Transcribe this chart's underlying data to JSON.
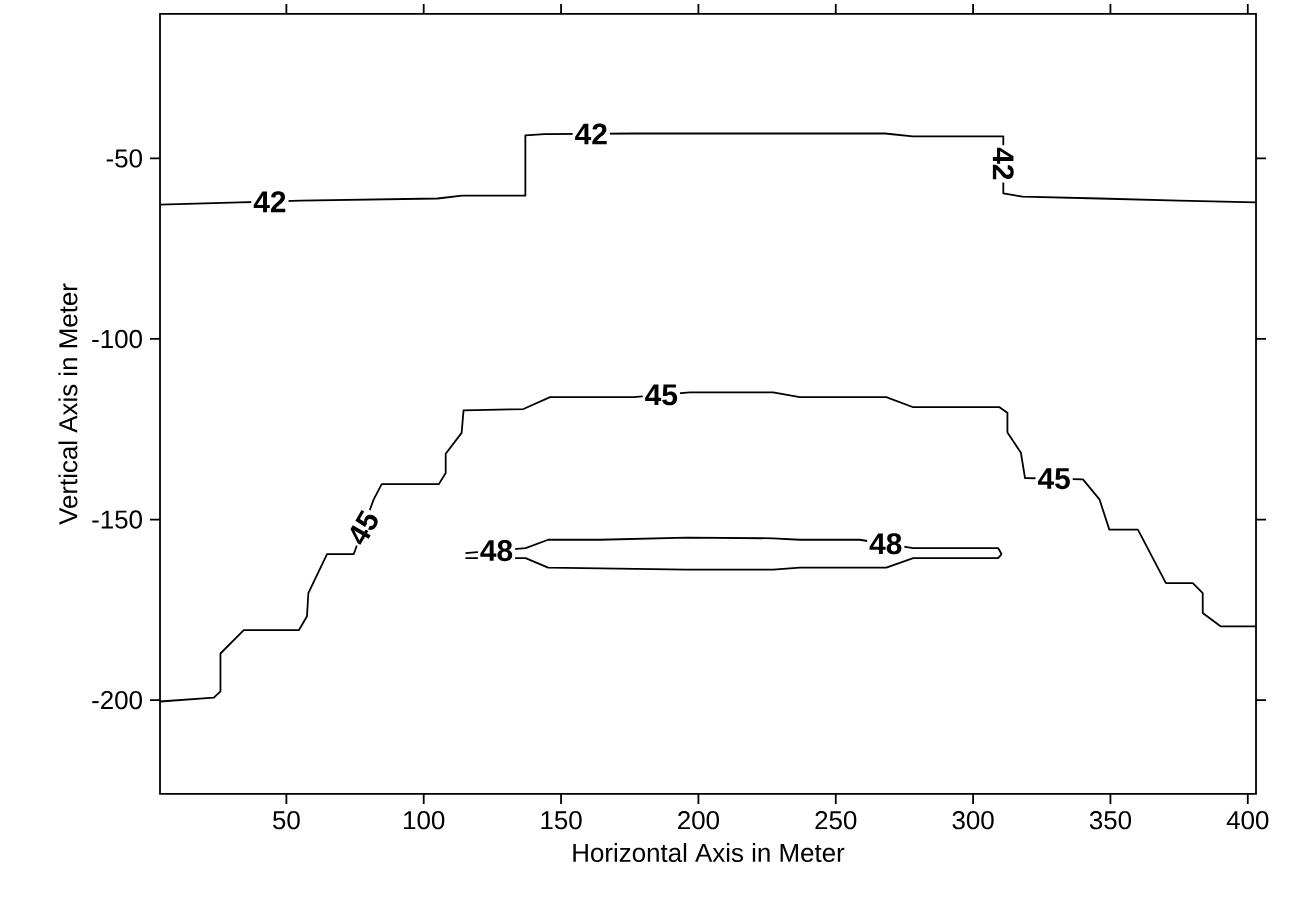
{
  "chart_data": {
    "type": "line",
    "xlabel": "Horizontal Axis in Meter",
    "ylabel": "Vertical Axis in Meter",
    "xlim": [
      4,
      403
    ],
    "ylim": [
      -226,
      -10
    ],
    "xticks": [
      50,
      100,
      150,
      200,
      250,
      300,
      350,
      400
    ],
    "yticks": [
      -200,
      -150,
      -100,
      -50
    ],
    "grid": false,
    "legend": false,
    "marker": "none",
    "line_style": "solid",
    "series": [
      {
        "color": "#000000",
        "x": [
          4,
          33,
          55,
          105,
          114,
          137,
          137,
          144,
          177,
          268,
          278,
          311,
          311,
          318,
          346,
          375,
          403
        ],
        "values": [
          -62.8,
          -62.2,
          -61.7,
          -61.1,
          -60.3,
          -60.3,
          -43.6,
          -43.3,
          -43.1,
          -43.1,
          -43.9,
          -43.9,
          -59.7,
          -60.6,
          -61.1,
          -61.7,
          -62.2
        ]
      },
      {
        "color": "#000000",
        "x": [
          4,
          23.6,
          26,
          26,
          34.5,
          54.6,
          57.5,
          58,
          64.8,
          74.5,
          81.8,
          84.7,
          105.5,
          108,
          108,
          113.8,
          114.5,
          136.3,
          146,
          176.4,
          196.9,
          227.2,
          236.9,
          268.4,
          278.2,
          309.6,
          312.5,
          312.5,
          317.4,
          318.9,
          340,
          346,
          349.6,
          360,
          370.2,
          380,
          383.6,
          383.6,
          390.2,
          403
        ],
        "values": [
          -200.4,
          -199.3,
          -197.6,
          -187.1,
          -180.6,
          -180.6,
          -176.8,
          -170.4,
          -159.6,
          -159.6,
          -144.4,
          -140.2,
          -140.2,
          -137.1,
          -131.8,
          -126,
          -119.8,
          -119.4,
          -116.1,
          -116.1,
          -114.8,
          -114.8,
          -116.1,
          -116.1,
          -118.9,
          -118.9,
          -120.4,
          -125.9,
          -131.5,
          -138.5,
          -138.9,
          -144.4,
          -152.8,
          -152.8,
          -167.6,
          -167.6,
          -170.4,
          -175.9,
          -179.6,
          -179.6
        ]
      },
      {
        "color": "#000000",
        "x": [
          115.2,
          137.1,
          145.3,
          164.2,
          195.7,
          227.2,
          236.9,
          258.7,
          278.2,
          309.1,
          310.4
        ],
        "values": [
          -159.3,
          -157.9,
          -155.6,
          -155.6,
          -155,
          -155.2,
          -155.6,
          -155.6,
          -157.9,
          -157.9,
          -159.6
        ]
      },
      {
        "color": "#000000",
        "x": [
          115.2,
          137.1,
          145.3,
          195.7,
          227.2,
          236.9,
          268.4,
          278.2,
          309.1,
          310.4
        ],
        "values": [
          -160.7,
          -160.7,
          -163.3,
          -163.9,
          -163.9,
          -163.3,
          -163.3,
          -160.7,
          -160.7,
          -159.6
        ]
      }
    ],
    "annotations": [
      {
        "text": "42",
        "x": 44,
        "y": -62
      },
      {
        "text": "42",
        "x": 161,
        "y": -43.2
      },
      {
        "text": "42",
        "x": 311,
        "y": -51.5
      },
      {
        "text": "45",
        "x": 78,
        "y": -152.3
      },
      {
        "text": "45",
        "x": 186.5,
        "y": -115.5
      },
      {
        "text": "45",
        "x": 329.5,
        "y": -138.7
      },
      {
        "text": "48",
        "x": 126.5,
        "y": -158.6
      },
      {
        "text": "48",
        "x": 268.2,
        "y": -156.7
      }
    ]
  }
}
